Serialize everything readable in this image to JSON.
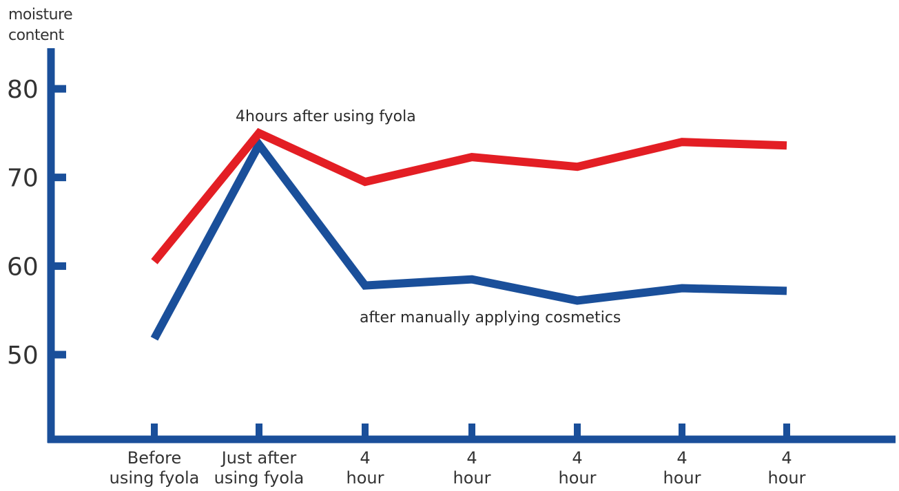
{
  "chart_data": {
    "type": "line",
    "ylabel": [
      "moisture",
      "content"
    ],
    "ylim": [
      40,
      84
    ],
    "yticks": [
      80,
      70,
      60,
      50
    ],
    "grid": false,
    "categories": [
      [
        "Before",
        "using fyola"
      ],
      [
        "Just after",
        "using fyola"
      ],
      [
        "4",
        "hour"
      ],
      [
        "4",
        "hour"
      ],
      [
        "4",
        "hour"
      ],
      [
        "4",
        "hour"
      ],
      [
        "4",
        "hour"
      ]
    ],
    "series": [
      {
        "color": "#e31e24",
        "values": [
          60.5,
          75,
          69.5,
          72.3,
          71.2,
          74,
          73.6
        ]
      },
      {
        "color": "#1a4f9a",
        "values": [
          51.8,
          73.7,
          57.8,
          58.5,
          56.1,
          57.5,
          57.2
        ]
      }
    ],
    "annotations": [
      {
        "text": "4hours after using fyola",
        "color": "#e31e24"
      },
      {
        "text": "after manually applying cosmetics",
        "color": "#1a4f9a"
      }
    ],
    "axis_color": "#1a4f9a"
  }
}
